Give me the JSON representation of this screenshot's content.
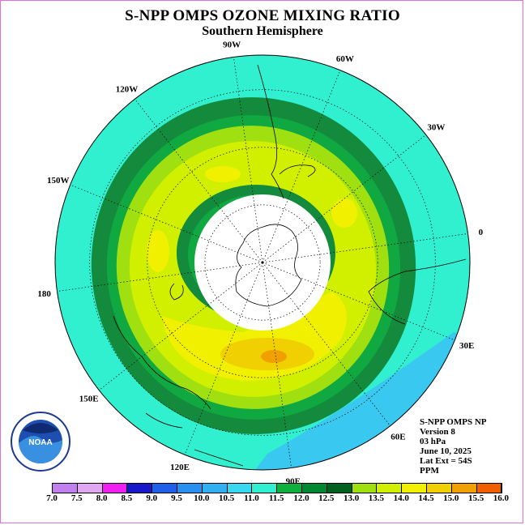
{
  "title": "S-NPP OMPS OZONE MIXING RATIO",
  "subtitle": "Southern Hemisphere",
  "longitude_labels": [
    {
      "text": "90W",
      "angle": -90
    },
    {
      "text": "60W",
      "angle": -60
    },
    {
      "text": "30W",
      "angle": -30
    },
    {
      "text": "0",
      "angle": 0
    },
    {
      "text": "30E",
      "angle": 30
    },
    {
      "text": "60E",
      "angle": 60
    },
    {
      "text": "90E",
      "angle": 90
    },
    {
      "text": "120E",
      "angle": 120
    },
    {
      "text": "150E",
      "angle": 150
    },
    {
      "text": "180",
      "angle": 180
    },
    {
      "text": "150W",
      "angle": -150
    },
    {
      "text": "120W",
      "angle": -120
    }
  ],
  "info": {
    "line1": "S-NPP OMPS NP",
    "line2": "Version 8",
    "line3": "03 hPa",
    "line4": "June 10, 2025",
    "line5": "Lat Ext = 54S",
    "line6": "PPM"
  },
  "logo_text": "NOAA",
  "colorbar": {
    "ticks": [
      "7.0",
      "7.5",
      "8.0",
      "8.5",
      "9.0",
      "9.5",
      "10.0",
      "10.5",
      "11.0",
      "11.5",
      "12.0",
      "12.5",
      "13.0",
      "13.5",
      "14.0",
      "14.5",
      "15.0",
      "15.5",
      "16.0"
    ],
    "colors": [
      "#c080f0",
      "#e0a8f0",
      "#f020f0",
      "#1818c8",
      "#2060e8",
      "#2890f0",
      "#30b0f0",
      "#38d8f0",
      "#30f0d0",
      "#10b040",
      "#008830",
      "#006020",
      "#a0e010",
      "#d0f000",
      "#f0f000",
      "#f0d000",
      "#f0a000",
      "#f06000",
      "#f00000",
      "#c02020",
      "#906040"
    ]
  },
  "field_colors": {
    "outer": "#30f0d0",
    "ring_dark": "#138a3c",
    "ring_mid": "#10a840",
    "ring_light": "#a0e010",
    "band": "#d0f000",
    "core": "#f0f000",
    "max": "#f0d000",
    "peak": "#f0a000",
    "low": "#38c8f0",
    "pole": "#ffffff"
  }
}
